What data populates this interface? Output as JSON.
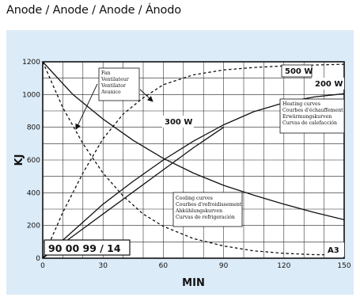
{
  "page": {
    "title": "Anode / Anode / Anode / Ánodo"
  },
  "chart_data": {
    "type": "line",
    "xlabel": "MIN",
    "ylabel": "KJ",
    "xlim": [
      0,
      150
    ],
    "ylim": [
      0,
      1200
    ],
    "xticks": [
      "0",
      "30",
      "60",
      "90",
      "120",
      "150"
    ],
    "yticks": [
      "0",
      "200",
      "400",
      "600",
      "800",
      "1000",
      "1200"
    ],
    "grid": true,
    "series": [
      {
        "name": "300 W",
        "group": "heating",
        "style": "solid",
        "x": [
          0,
          15,
          30,
          45,
          60,
          75,
          90
        ],
        "y": [
          0,
          135,
          270,
          405,
          540,
          675,
          800
        ]
      },
      {
        "name": "200 W",
        "group": "heating",
        "style": "solid",
        "x": [
          0,
          15,
          30,
          45,
          60,
          75,
          90,
          105,
          120,
          135,
          150
        ],
        "y": [
          0,
          165,
          330,
          470,
          600,
          715,
          815,
          895,
          950,
          985,
          1005
        ]
      },
      {
        "name": "500 W",
        "group": "heating-fan",
        "style": "dashed",
        "x": [
          0,
          10,
          20,
          30,
          40,
          50,
          60,
          75,
          90,
          105,
          120,
          135,
          150
        ],
        "y": [
          0,
          280,
          520,
          730,
          880,
          980,
          1060,
          1120,
          1150,
          1165,
          1175,
          1180,
          1185
        ]
      },
      {
        "name": "",
        "group": "cooling",
        "style": "solid",
        "x": [
          0,
          15,
          30,
          45,
          60,
          75,
          90,
          105,
          120,
          135,
          150
        ],
        "y": [
          1200,
          1000,
          850,
          720,
          610,
          520,
          445,
          385,
          330,
          280,
          235
        ]
      },
      {
        "name": "",
        "group": "cooling-fan",
        "style": "dashed",
        "x": [
          0,
          10,
          20,
          30,
          40,
          50,
          60,
          75,
          90,
          105,
          120,
          135,
          150
        ],
        "y": [
          1200,
          920,
          700,
          520,
          380,
          270,
          195,
          120,
          75,
          45,
          30,
          22,
          20
        ]
      }
    ],
    "series_labels": [
      "500 W",
      "200 W",
      "300 W"
    ],
    "annotations": {
      "fan": [
        "Fan",
        "Ventilateur",
        "Ventilator",
        "Avanico"
      ],
      "heating": [
        "Heating curves",
        "Courbes d'échauffement",
        "Erwärmungskurven",
        "Curvas de calefacción"
      ],
      "cooling": [
        "Cooling curves",
        "Courbes d'refroidissement",
        "Abkühlungskurven",
        "Curvas de refrigeración"
      ],
      "code": "90 00 99 / 14",
      "corner": "A3"
    }
  }
}
